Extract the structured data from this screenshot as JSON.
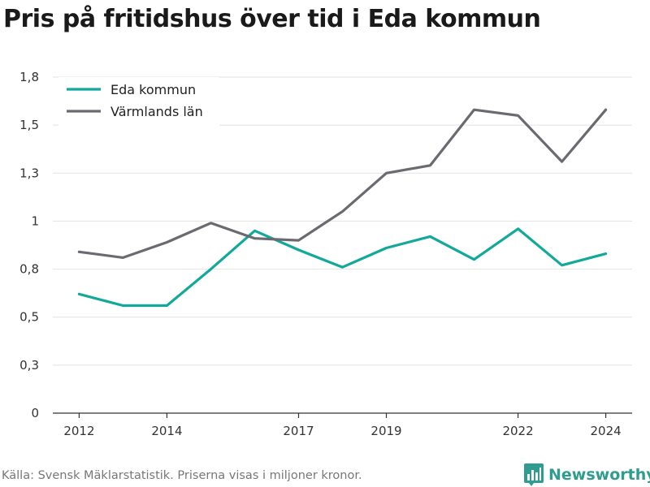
{
  "title": "Pris på fritidshus över tid i Eda kommun",
  "footer": "Källa: Svensk Mäklarstatistik. Priserna visas i miljoner kronor.",
  "brand": {
    "name": "Newsworthy",
    "color": "#2e9c8e",
    "icon": "bar-chart-logo-icon"
  },
  "chart_data": {
    "type": "line",
    "title": "Pris på fritidshus över tid i Eda kommun",
    "xlabel": "",
    "ylabel": "",
    "x": [
      2012,
      2013,
      2014,
      2015,
      2016,
      2017,
      2018,
      2019,
      2020,
      2021,
      2022,
      2023,
      2024
    ],
    "xticks": [
      2012,
      2014,
      2017,
      2019,
      2022,
      2024
    ],
    "yticks": [
      0,
      0.25,
      0.5,
      0.75,
      1.0,
      1.25,
      1.5,
      1.75
    ],
    "ytick_labels": [
      "0",
      "0,3",
      "0,5",
      "0,8",
      "1",
      "1,3",
      "1,5",
      "1,8"
    ],
    "ylim": [
      0,
      1.75
    ],
    "grid": true,
    "legend": "top-left",
    "series": [
      {
        "name": "Eda kommun",
        "color": "#12a89a",
        "values": [
          0.62,
          0.56,
          0.56,
          0.75,
          0.95,
          0.85,
          0.76,
          0.86,
          0.92,
          0.8,
          0.96,
          0.77,
          0.83
        ]
      },
      {
        "name": "Värmlands län",
        "color": "#6b6a70",
        "values": [
          0.84,
          0.81,
          0.89,
          0.99,
          0.91,
          0.9,
          1.05,
          1.25,
          1.29,
          1.58,
          1.55,
          1.31,
          1.58
        ]
      }
    ]
  }
}
